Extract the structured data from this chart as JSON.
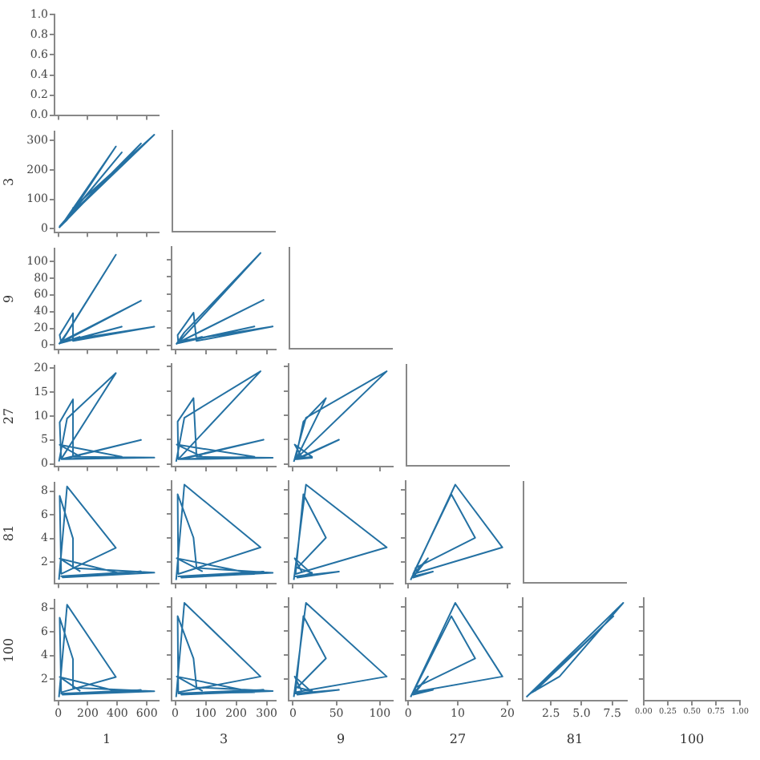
{
  "chart_data": [
    {
      "type": "line",
      "xlim": [
        -25,
        680
      ],
      "xticks": [
        0,
        200,
        400,
        600
      ],
      "ylim": [
        0,
        1
      ],
      "yticks": [
        {
          "value": 0,
          "label": "0.0"
        },
        {
          "value": 0.2,
          "label": "0.2"
        },
        {
          "value": 0.4,
          "label": "0.4"
        },
        {
          "value": 0.6,
          "label": "0.6"
        },
        {
          "value": 0.8,
          "label": "0.8"
        },
        {
          "value": 1,
          "label": "1.0"
        }
      ],
      "tick_labels": "y"
    },
    {
      "type": "line",
      "ylabel": "3",
      "xlim": [
        -25,
        680
      ],
      "xticks": [
        0,
        200,
        400,
        600
      ],
      "ylim": [
        -12,
        330
      ],
      "yticks": [
        0,
        100,
        200,
        300
      ],
      "tick_labels": "y",
      "x": [
        5,
        60,
        390,
        20,
        10,
        100,
        100,
        650,
        30,
        560,
        20,
        430,
        10,
        150
      ],
      "series": [
        {
          "color": "#2471a3",
          "values": [
            3,
            30,
            280,
            10,
            8,
            60,
            70,
            320,
            20,
            290,
            10,
            260,
            5,
            90
          ]
        }
      ]
    },
    {
      "type": "line",
      "ylabel": "9",
      "xlim": [
        -25,
        680
      ],
      "xticks": [
        0,
        200,
        400,
        600
      ],
      "ylim": [
        -5,
        115
      ],
      "yticks": [
        0,
        20,
        40,
        60,
        80,
        100
      ],
      "tick_labels": "y",
      "x": [
        5,
        60,
        390,
        20,
        10,
        100,
        100,
        650,
        30,
        560,
        20,
        430,
        10,
        150
      ],
      "series": [
        {
          "color": "#2471a3",
          "values": [
            1,
            15,
            108,
            3,
            12,
            38,
            5,
            22,
            5,
            53,
            3,
            22,
            2,
            10
          ]
        }
      ]
    },
    {
      "type": "line",
      "xlim": [
        -12,
        330
      ],
      "xticks": [
        0,
        100,
        200,
        300
      ],
      "ylim": [
        -5,
        115
      ],
      "yticks": [
        0,
        20,
        40,
        60,
        80,
        100
      ],
      "tick_labels": false,
      "x": [
        3,
        30,
        280,
        10,
        8,
        60,
        70,
        320,
        20,
        290,
        10,
        260,
        5,
        90
      ],
      "series": [
        {
          "color": "#2471a3",
          "values": [
            1,
            15,
            108,
            3,
            12,
            38,
            5,
            22,
            5,
            53,
            3,
            22,
            2,
            10
          ]
        }
      ]
    },
    {
      "type": "line",
      "ylabel": "27",
      "xlim": [
        -25,
        680
      ],
      "xticks": [
        0,
        200,
        400,
        600
      ],
      "ylim": [
        -0.5,
        20.5
      ],
      "yticks": [
        0,
        5,
        10,
        15,
        20
      ],
      "tick_labels": "y",
      "x": [
        5,
        60,
        390,
        20,
        10,
        100,
        100,
        650,
        30,
        560,
        20,
        430,
        10,
        150
      ],
      "series": [
        {
          "color": "#2471a3",
          "values": [
            0.5,
            9.5,
            19,
            1,
            8.7,
            13.5,
            1.5,
            1.3,
            1,
            5,
            1,
            1.5,
            4,
            1.5
          ]
        }
      ]
    },
    {
      "type": "line",
      "xlim": [
        -12,
        330
      ],
      "xticks": [
        0,
        100,
        200,
        300
      ],
      "ylim": [
        -0.5,
        20.5
      ],
      "yticks": [
        0,
        5,
        10,
        15,
        20
      ],
      "tick_labels": false,
      "x": [
        3,
        30,
        280,
        10,
        8,
        60,
        70,
        320,
        20,
        290,
        10,
        260,
        5,
        90
      ],
      "series": [
        {
          "color": "#2471a3",
          "values": [
            0.5,
            9.5,
            19,
            1,
            8.7,
            13.5,
            1.5,
            1.3,
            1,
            5,
            1,
            1.5,
            4,
            1.5
          ]
        }
      ]
    },
    {
      "type": "line",
      "xlim": [
        -5,
        115
      ],
      "xticks": [
        0,
        50,
        100
      ],
      "ylim": [
        -0.5,
        20.5
      ],
      "yticks": [
        0,
        5,
        10,
        15,
        20
      ],
      "tick_labels": false,
      "x": [
        1,
        15,
        108,
        3,
        12,
        38,
        5,
        22,
        5,
        53,
        3,
        22,
        2,
        10
      ],
      "series": [
        {
          "color": "#2471a3",
          "values": [
            0.5,
            9.5,
            19,
            1,
            8.7,
            13.5,
            1.5,
            1.3,
            1,
            5,
            1,
            1.5,
            4,
            1.5
          ]
        }
      ]
    },
    {
      "type": "line",
      "ylabel": "81",
      "xlim": [
        -25,
        680
      ],
      "xticks": [
        0,
        200,
        400,
        600
      ],
      "ylim": [
        0.2,
        8.7
      ],
      "yticks": [
        2,
        4,
        6,
        8
      ],
      "tick_labels": "y",
      "x": [
        5,
        60,
        390,
        20,
        10,
        100,
        100,
        650,
        30,
        560,
        20,
        430,
        10,
        150
      ],
      "series": [
        {
          "color": "#2471a3",
          "values": [
            0.5,
            8.4,
            3.2,
            1,
            7.6,
            4,
            1.5,
            1.1,
            0.7,
            1.2,
            0.8,
            1,
            2.3,
            1.2
          ]
        }
      ]
    },
    {
      "type": "line",
      "xlim": [
        -12,
        330
      ],
      "xticks": [
        0,
        100,
        200,
        300
      ],
      "ylim": [
        0.2,
        8.7
      ],
      "yticks": [
        2,
        4,
        6,
        8
      ],
      "tick_labels": false,
      "x": [
        3,
        30,
        280,
        10,
        8,
        60,
        70,
        320,
        20,
        290,
        10,
        260,
        5,
        90
      ],
      "series": [
        {
          "color": "#2471a3",
          "values": [
            0.5,
            8.4,
            3.2,
            1,
            7.6,
            4,
            1.5,
            1.1,
            0.7,
            1.2,
            0.8,
            1,
            2.3,
            1.2
          ]
        }
      ]
    },
    {
      "type": "line",
      "xlim": [
        -5,
        115
      ],
      "xticks": [
        0,
        50,
        100
      ],
      "ylim": [
        0.2,
        8.7
      ],
      "yticks": [
        2,
        4,
        6,
        8
      ],
      "tick_labels": false,
      "x": [
        1,
        15,
        108,
        3,
        12,
        38,
        5,
        22,
        5,
        53,
        3,
        22,
        2,
        10
      ],
      "series": [
        {
          "color": "#2471a3",
          "values": [
            0.5,
            8.4,
            3.2,
            1,
            7.6,
            4,
            1.5,
            1.1,
            0.7,
            1.2,
            0.8,
            1,
            2.3,
            1.2
          ]
        }
      ]
    },
    {
      "type": "line",
      "xlim": [
        -0.5,
        20.5
      ],
      "xticks": [
        0,
        10,
        20
      ],
      "ylim": [
        0.2,
        8.7
      ],
      "yticks": [
        2,
        4,
        6,
        8
      ],
      "tick_labels": false,
      "x": [
        0.5,
        9.5,
        19,
        1,
        8.7,
        13.5,
        1.5,
        1.3,
        1,
        5,
        1,
        1.5,
        4,
        1.5
      ],
      "series": [
        {
          "color": "#2471a3",
          "values": [
            0.5,
            8.4,
            3.2,
            1,
            7.6,
            4,
            1.5,
            1.1,
            0.7,
            1.2,
            0.8,
            1,
            2.3,
            1.2
          ]
        }
      ]
    },
    {
      "type": "line",
      "xlabel": "1",
      "ylabel": "100",
      "xlim": [
        -25,
        680
      ],
      "xticks": [
        0,
        200,
        400,
        600
      ],
      "ylim": [
        0.2,
        8.7
      ],
      "yticks": [
        2,
        4,
        6,
        8
      ],
      "x": [
        5,
        60,
        390,
        20,
        10,
        100,
        100,
        650,
        30,
        560,
        20,
        430,
        10,
        150
      ],
      "series": [
        {
          "color": "#2471a3",
          "values": [
            0.5,
            8.3,
            2.2,
            0.9,
            7.2,
            3.7,
            1.3,
            1,
            0.7,
            1.1,
            0.8,
            0.9,
            2.2,
            1
          ]
        }
      ]
    },
    {
      "type": "line",
      "xlabel": "3",
      "xlim": [
        -12,
        330
      ],
      "xticks": [
        0,
        100,
        200,
        300
      ],
      "ylim": [
        0.2,
        8.7
      ],
      "yticks": [
        2,
        4,
        6,
        8
      ],
      "tick_labels": "x",
      "x": [
        3,
        30,
        280,
        10,
        8,
        60,
        70,
        320,
        20,
        290,
        10,
        260,
        5,
        90
      ],
      "series": [
        {
          "color": "#2471a3",
          "values": [
            0.5,
            8.3,
            2.2,
            0.9,
            7.2,
            3.7,
            1.3,
            1,
            0.7,
            1.1,
            0.8,
            0.9,
            2.2,
            1
          ]
        }
      ]
    },
    {
      "type": "line",
      "xlabel": "9",
      "xlim": [
        -5,
        115
      ],
      "xticks": [
        0,
        50,
        100
      ],
      "ylim": [
        0.2,
        8.7
      ],
      "yticks": [
        2,
        4,
        6,
        8
      ],
      "tick_labels": "x",
      "x": [
        1,
        15,
        108,
        3,
        12,
        38,
        5,
        22,
        5,
        53,
        3,
        22,
        2,
        10
      ],
      "series": [
        {
          "color": "#2471a3",
          "values": [
            0.5,
            8.3,
            2.2,
            0.9,
            7.2,
            3.7,
            1.3,
            1,
            0.7,
            1.1,
            0.8,
            0.9,
            2.2,
            1
          ]
        }
      ]
    },
    {
      "type": "line",
      "xlabel": "27",
      "xlim": [
        -0.5,
        20.5
      ],
      "xticks": [
        0,
        10,
        20
      ],
      "ylim": [
        0.2,
        8.7
      ],
      "yticks": [
        2,
        4,
        6,
        8
      ],
      "tick_labels": "x",
      "x": [
        0.5,
        9.5,
        19,
        1,
        8.7,
        13.5,
        1.5,
        1.3,
        1,
        5,
        1,
        1.5,
        4,
        1.5
      ],
      "series": [
        {
          "color": "#2471a3",
          "values": [
            0.5,
            8.3,
            2.2,
            0.9,
            7.2,
            3.7,
            1.3,
            1,
            0.7,
            1.1,
            0.8,
            0.9,
            2.2,
            1
          ]
        }
      ]
    },
    {
      "type": "line",
      "xlabel": "81",
      "xlim": [
        0.2,
        8.7
      ],
      "xticks": [
        2.5,
        {
          "value": 5,
          "label": "5.0"
        },
        7.5
      ],
      "ylim": [
        0.2,
        8.7
      ],
      "yticks": [
        2,
        4,
        6,
        8
      ],
      "tick_labels": "x",
      "x": [
        0.5,
        8.4,
        3.2,
        1,
        7.6,
        4,
        1.5,
        1.1,
        0.7,
        1.2,
        0.8,
        1,
        2.3,
        1.2
      ],
      "series": [
        {
          "color": "#2471a3",
          "values": [
            0.5,
            8.3,
            2.2,
            0.9,
            7.2,
            3.7,
            1.3,
            1,
            0.7,
            1.1,
            0.8,
            0.9,
            2.2,
            1
          ]
        }
      ]
    },
    {
      "type": "line",
      "ylim": [
        0.2,
        8.7
      ],
      "yticks": [
        2,
        4,
        6,
        8
      ],
      "xlabel": "100",
      "xlim": [
        0,
        1
      ],
      "xticks": [
        {
          "value": 0,
          "label": "0.00"
        },
        {
          "value": 0.25,
          "label": "0.25"
        },
        {
          "value": 0.5,
          "label": "0.50"
        },
        {
          "value": 0.75,
          "label": "0.75"
        },
        {
          "value": 1,
          "label": "1.00"
        }
      ],
      "tick_labels": "x"
    }
  ]
}
